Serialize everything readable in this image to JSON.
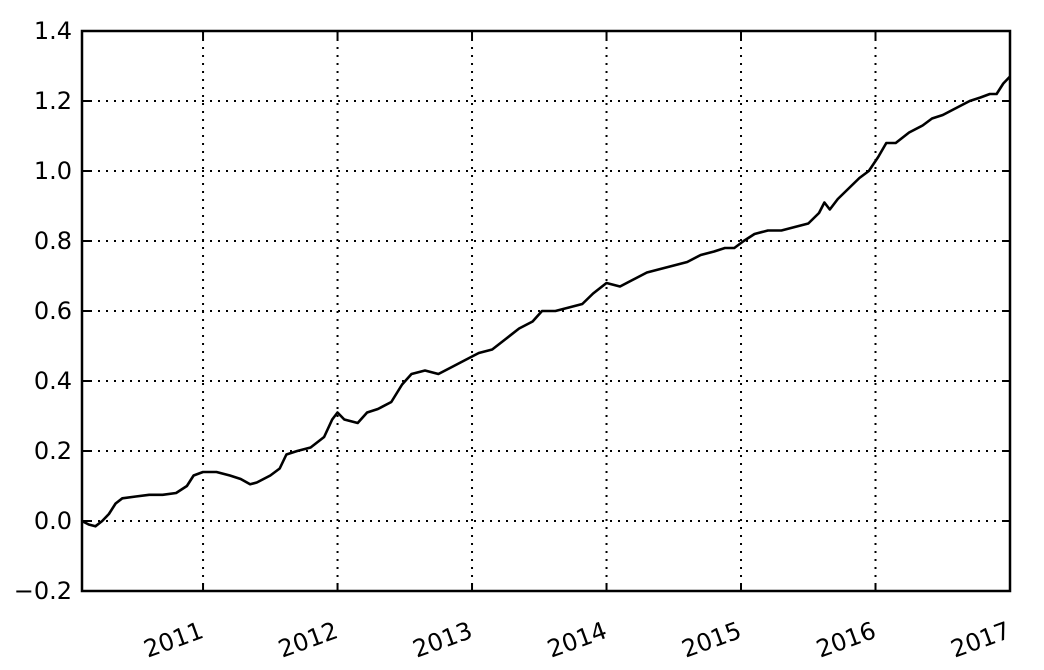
{
  "chart_data": {
    "type": "line",
    "title": "",
    "xlabel": "",
    "ylabel": "",
    "grid": true,
    "xlim": [
      2010.1,
      2017.0
    ],
    "ylim": [
      -0.2,
      1.4
    ],
    "x_ticks": [
      {
        "value": 2011,
        "label": "2011"
      },
      {
        "value": 2012,
        "label": "2012"
      },
      {
        "value": 2013,
        "label": "2013"
      },
      {
        "value": 2014,
        "label": "2014"
      },
      {
        "value": 2015,
        "label": "2015"
      },
      {
        "value": 2016,
        "label": "2016"
      },
      {
        "value": 2017,
        "label": "2017"
      }
    ],
    "y_ticks": [
      {
        "value": -0.2,
        "label": "−0.2"
      },
      {
        "value": 0.0,
        "label": "0.0"
      },
      {
        "value": 0.2,
        "label": "0.2"
      },
      {
        "value": 0.4,
        "label": "0.4"
      },
      {
        "value": 0.6,
        "label": "0.6"
      },
      {
        "value": 0.8,
        "label": "0.8"
      },
      {
        "value": 1.0,
        "label": "1.0"
      },
      {
        "value": 1.2,
        "label": "1.2"
      },
      {
        "value": 1.4,
        "label": "1.4"
      }
    ],
    "series": [
      {
        "color": "#000000",
        "points": [
          [
            2010.1,
            0.0
          ],
          [
            2010.15,
            -0.01
          ],
          [
            2010.2,
            -0.015
          ],
          [
            2010.25,
            0.0
          ],
          [
            2010.3,
            0.02
          ],
          [
            2010.35,
            0.05
          ],
          [
            2010.4,
            0.065
          ],
          [
            2010.5,
            0.07
          ],
          [
            2010.6,
            0.075
          ],
          [
            2010.7,
            0.075
          ],
          [
            2010.8,
            0.08
          ],
          [
            2010.88,
            0.1
          ],
          [
            2010.93,
            0.13
          ],
          [
            2011.0,
            0.14
          ],
          [
            2011.1,
            0.14
          ],
          [
            2011.2,
            0.13
          ],
          [
            2011.28,
            0.12
          ],
          [
            2011.35,
            0.105
          ],
          [
            2011.4,
            0.11
          ],
          [
            2011.5,
            0.13
          ],
          [
            2011.57,
            0.15
          ],
          [
            2011.62,
            0.19
          ],
          [
            2011.7,
            0.2
          ],
          [
            2011.8,
            0.21
          ],
          [
            2011.9,
            0.24
          ],
          [
            2011.96,
            0.29
          ],
          [
            2012.0,
            0.31
          ],
          [
            2012.05,
            0.29
          ],
          [
            2012.15,
            0.28
          ],
          [
            2012.22,
            0.31
          ],
          [
            2012.3,
            0.32
          ],
          [
            2012.4,
            0.34
          ],
          [
            2012.48,
            0.39
          ],
          [
            2012.55,
            0.42
          ],
          [
            2012.65,
            0.43
          ],
          [
            2012.75,
            0.42
          ],
          [
            2012.85,
            0.44
          ],
          [
            2012.95,
            0.46
          ],
          [
            2013.05,
            0.48
          ],
          [
            2013.15,
            0.49
          ],
          [
            2013.25,
            0.52
          ],
          [
            2013.35,
            0.55
          ],
          [
            2013.45,
            0.57
          ],
          [
            2013.52,
            0.6
          ],
          [
            2013.62,
            0.6
          ],
          [
            2013.72,
            0.61
          ],
          [
            2013.82,
            0.62
          ],
          [
            2013.9,
            0.65
          ],
          [
            2014.0,
            0.68
          ],
          [
            2014.1,
            0.67
          ],
          [
            2014.2,
            0.69
          ],
          [
            2014.3,
            0.71
          ],
          [
            2014.4,
            0.72
          ],
          [
            2014.5,
            0.73
          ],
          [
            2014.6,
            0.74
          ],
          [
            2014.7,
            0.76
          ],
          [
            2014.8,
            0.77
          ],
          [
            2014.88,
            0.78
          ],
          [
            2014.95,
            0.78
          ],
          [
            2015.02,
            0.8
          ],
          [
            2015.1,
            0.82
          ],
          [
            2015.2,
            0.83
          ],
          [
            2015.3,
            0.83
          ],
          [
            2015.4,
            0.84
          ],
          [
            2015.5,
            0.85
          ],
          [
            2015.58,
            0.88
          ],
          [
            2015.62,
            0.91
          ],
          [
            2015.66,
            0.89
          ],
          [
            2015.72,
            0.92
          ],
          [
            2015.8,
            0.95
          ],
          [
            2015.88,
            0.98
          ],
          [
            2015.95,
            1.0
          ],
          [
            2016.02,
            1.04
          ],
          [
            2016.08,
            1.08
          ],
          [
            2016.15,
            1.08
          ],
          [
            2016.25,
            1.11
          ],
          [
            2016.35,
            1.13
          ],
          [
            2016.42,
            1.15
          ],
          [
            2016.5,
            1.16
          ],
          [
            2016.6,
            1.18
          ],
          [
            2016.7,
            1.2
          ],
          [
            2016.78,
            1.21
          ],
          [
            2016.85,
            1.22
          ],
          [
            2016.9,
            1.22
          ],
          [
            2016.95,
            1.25
          ],
          [
            2017.0,
            1.27
          ]
        ]
      }
    ]
  }
}
